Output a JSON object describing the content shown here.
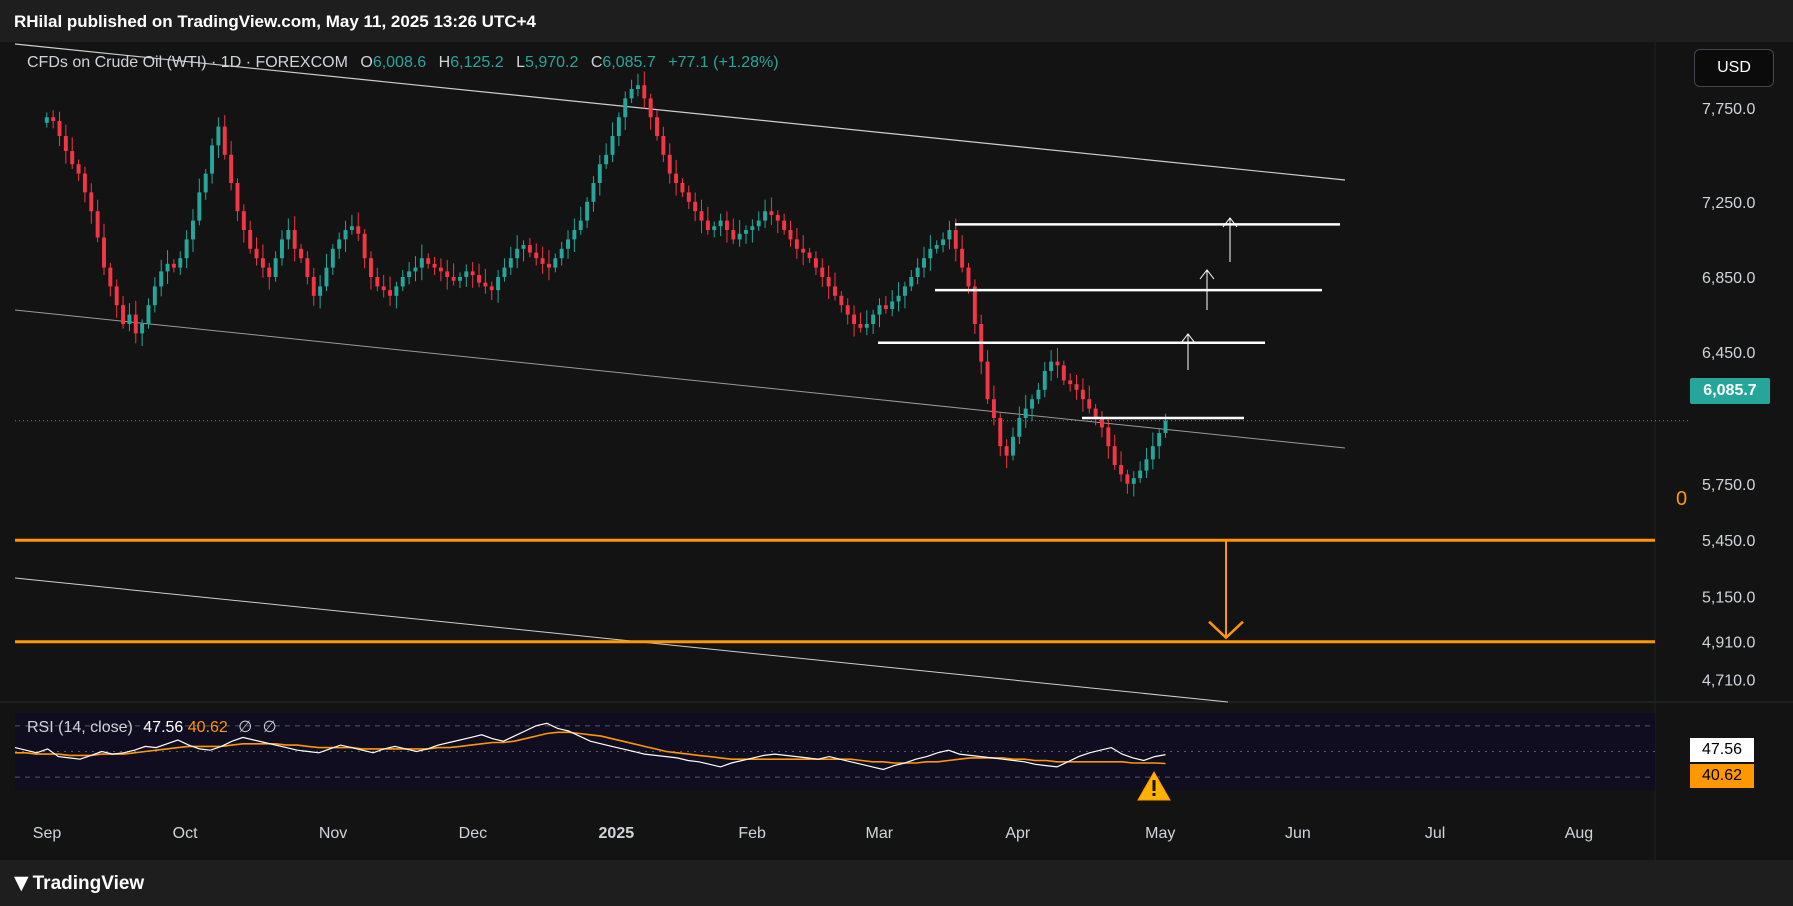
{
  "header": {
    "published_text": "RHilal published on TradingView.com, May 11, 2025 13:26 UTC+4"
  },
  "legend": {
    "symbol": "CFDs on Crude Oil (WTI) · 1D · FOREXCOM",
    "o_label": "O",
    "o_value": "6,008.6",
    "h_label": "H",
    "h_value": "6,125.2",
    "l_label": "L",
    "l_value": "5,970.2",
    "c_label": "C",
    "c_value": "6,085.7",
    "change": "+77.1 (+1.28%)"
  },
  "currency_button": "USD",
  "current_price_tag": "6,085.7",
  "fib_zero_label": "0",
  "rsi": {
    "label": "RSI (14, close)",
    "value": "47.56",
    "ma_value": "40.62",
    "extra1": "∅",
    "extra2": "∅"
  },
  "footer": {
    "brand": "TradingView"
  },
  "colors": {
    "up": "#26a69a",
    "down": "#f23645",
    "orange": "#ff9800",
    "rsi_line": "#ffffff",
    "rsi_ma": "#ff9800",
    "bg": "#131313"
  },
  "chart_data": {
    "type": "candlestick",
    "title": "CFDs on Crude Oil (WTI) · 1D · FOREXCOM",
    "y_ticks": [
      "7,750.0",
      "7,250.0",
      "6,850.0",
      "6,450.0",
      "5,750.0",
      "5,450.0",
      "5,150.0",
      "4,910.0",
      "4,710.0"
    ],
    "y_tick_values": [
      7750,
      7250,
      6850,
      6450,
      5750,
      5450,
      5150,
      4910,
      4710
    ],
    "x_ticks": [
      "Sep",
      "Oct",
      "Nov",
      "Dec",
      "2025",
      "Feb",
      "Mar",
      "Apr",
      "May",
      "Jun",
      "Jul",
      "Aug"
    ],
    "x_tick_index": [
      0,
      22,
      45,
      67,
      89,
      111,
      131,
      153,
      175,
      197,
      219,
      241
    ],
    "x_range": [
      -5,
      253
    ],
    "ylim": [
      4600,
      8100
    ],
    "series_close": [
      7700,
      7680,
      7600,
      7520,
      7450,
      7400,
      7300,
      7200,
      7060,
      6900,
      6800,
      6700,
      6600,
      6650,
      6550,
      6600,
      6700,
      6800,
      6880,
      6920,
      6900,
      6950,
      7050,
      7150,
      7300,
      7400,
      7550,
      7650,
      7500,
      7350,
      7200,
      7100,
      7000,
      6950,
      6900,
      6850,
      6950,
      7050,
      7100,
      7000,
      6950,
      6850,
      6750,
      6800,
      6900,
      7000,
      7050,
      7100,
      7120,
      7080,
      6950,
      6850,
      6800,
      6780,
      6750,
      6800,
      6850,
      6880,
      6900,
      6950,
      6920,
      6900,
      6880,
      6850,
      6830,
      6850,
      6880,
      6860,
      6820,
      6800,
      6780,
      6850,
      6900,
      6950,
      7000,
      7020,
      6980,
      6950,
      6920,
      6900,
      6950,
      7000,
      7050,
      7100,
      7150,
      7250,
      7350,
      7450,
      7500,
      7600,
      7700,
      7800,
      7850,
      7870,
      7800,
      7700,
      7600,
      7500,
      7400,
      7350,
      7300,
      7250,
      7200,
      7150,
      7100,
      7120,
      7150,
      7100,
      7050,
      7080,
      7100,
      7120,
      7150,
      7200,
      7180,
      7150,
      7100,
      7050,
      7000,
      6980,
      6950,
      6900,
      6850,
      6800,
      6750,
      6700,
      6650,
      6600,
      6580,
      6600,
      6650,
      6700,
      6680,
      6720,
      6750,
      6800,
      6850,
      6900,
      6950,
      7000,
      7020,
      7050,
      7100,
      7000,
      6900,
      6800,
      6600,
      6400,
      6200,
      6100,
      5950,
      5900,
      6000,
      6100,
      6150,
      6200,
      6250,
      6350,
      6400,
      6380,
      6300,
      6280,
      6250,
      6200,
      6150,
      6100,
      6050,
      5950,
      5850,
      5800,
      5750,
      5780,
      5820,
      5880,
      5950,
      6020,
      6085.7
    ],
    "rsi_y_ticks": [
      "47.56",
      "40.62"
    ],
    "rsi_series": [
      53,
      51,
      49,
      52,
      46,
      45,
      44,
      47,
      50,
      48,
      49,
      51,
      54,
      53,
      56,
      59,
      55,
      52,
      51,
      54,
      58,
      61,
      59,
      57,
      55,
      53,
      51,
      50,
      49,
      52,
      55,
      53,
      51,
      49,
      52,
      54,
      52,
      50,
      52,
      55,
      57,
      59,
      61,
      63,
      60,
      58,
      62,
      66,
      70,
      72,
      68,
      66,
      62,
      58,
      56,
      54,
      52,
      50,
      48,
      47,
      46,
      45,
      43,
      42,
      40,
      38,
      41,
      43,
      45,
      47,
      48,
      47,
      46,
      45,
      44,
      46,
      44,
      42,
      40,
      38,
      36,
      39,
      41,
      44,
      46,
      49,
      51,
      48,
      47,
      46,
      45,
      44,
      43,
      42,
      40,
      39,
      38,
      42,
      46,
      49,
      51,
      53,
      48,
      45,
      43,
      46,
      47.56
    ],
    "rsi_ma_series": [
      49,
      49,
      48,
      48,
      48,
      47,
      47,
      47,
      48,
      48,
      48,
      49,
      50,
      51,
      52,
      53,
      54,
      54,
      54,
      54,
      55,
      56,
      56,
      56,
      56,
      55,
      55,
      54,
      53,
      53,
      53,
      53,
      52,
      52,
      52,
      52,
      52,
      52,
      52,
      53,
      53,
      54,
      55,
      56,
      57,
      57,
      58,
      60,
      62,
      64,
      65,
      65,
      64,
      63,
      62,
      60,
      58,
      56,
      54,
      52,
      50,
      49,
      48,
      47,
      46,
      45,
      44,
      44,
      44,
      44,
      44,
      44,
      44,
      44,
      44,
      44,
      44,
      44,
      43,
      42,
      42,
      41,
      41,
      41,
      42,
      42,
      43,
      44,
      45,
      45,
      45,
      45,
      44,
      44,
      43,
      43,
      42,
      42,
      42,
      42,
      42,
      42,
      42,
      41,
      41,
      41,
      40.62
    ],
    "annotations": [
      {
        "type": "horizontal",
        "label": "0",
        "value": 5450
      },
      {
        "type": "horizontal",
        "value": 4910
      },
      {
        "type": "arrow-down",
        "from": 5450,
        "to": 4910
      }
    ]
  }
}
